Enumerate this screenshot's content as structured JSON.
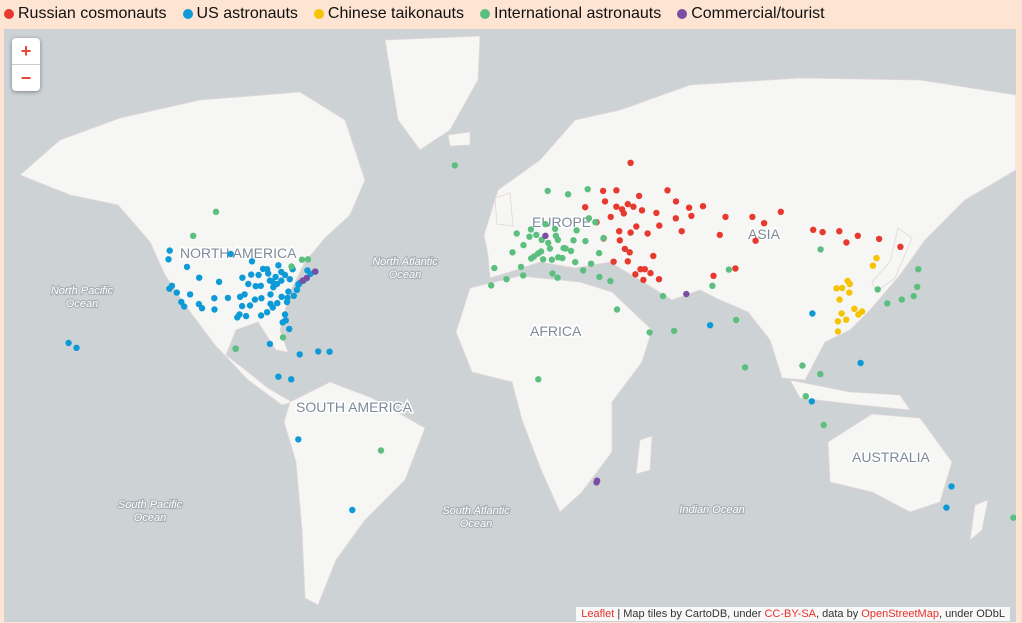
{
  "legend": [
    {
      "label": "Russian cosmonauts",
      "color": "#e8392f"
    },
    {
      "label": "US astronauts",
      "color": "#0d9ad6"
    },
    {
      "label": "Chinese taikonauts",
      "color": "#f5c300"
    },
    {
      "label": "International astronauts",
      "color": "#5cbf7f"
    },
    {
      "label": "Commercial/tourist",
      "color": "#7a4ea3"
    }
  ],
  "zoom": {
    "in": "+",
    "out": "−"
  },
  "labels": {
    "north_america": "NORTH AMERICA",
    "europe": "EUROPE",
    "asia": "ASIA",
    "africa": "AFRICA",
    "south_america": "SOUTH AMERICA",
    "australia": "AUSTRALIA",
    "north_atlantic": [
      "North Atlantic",
      "Ocean"
    ],
    "north_pacific": [
      "North Pacific",
      "Ocean"
    ],
    "south_pacific": [
      "South Pacific",
      "Ocean"
    ],
    "south_atlantic": [
      "South Atlantic",
      "Ocean"
    ],
    "indian": [
      "Indian Ocean"
    ]
  },
  "attribution": {
    "leaflet": "Leaflet",
    "sep": " | Map tiles by CartoDB, under ",
    "ccbysa": "CC-BY-SA",
    "mid": ", data by ",
    "osm": "OpenStreetMap",
    "end": ", under ODbL"
  },
  "points": {
    "russian": [
      [
        37.6,
        55.7
      ],
      [
        30.3,
        59.9
      ],
      [
        39.7,
        47.2
      ],
      [
        44,
        56.3
      ],
      [
        49.1,
        55.8
      ],
      [
        50.1,
        53.2
      ],
      [
        60.6,
        56.8
      ],
      [
        61.4,
        55.2
      ],
      [
        73.4,
        55
      ],
      [
        82.9,
        55
      ],
      [
        92.9,
        56
      ],
      [
        104.3,
        52.3
      ],
      [
        113.5,
        52
      ],
      [
        127.5,
        50.3
      ],
      [
        135,
        48.5
      ],
      [
        36,
        52
      ],
      [
        40,
        51.7
      ],
      [
        33,
        55
      ],
      [
        35,
        57
      ],
      [
        42,
        53
      ],
      [
        46,
        51.5
      ],
      [
        48,
        46.3
      ],
      [
        39,
        45
      ],
      [
        45,
        43
      ],
      [
        43.5,
        43
      ],
      [
        55.9,
        54.7
      ],
      [
        65.5,
        57.1
      ],
      [
        76.9,
        43.2
      ],
      [
        69.2,
        41.3
      ],
      [
        71.4,
        51.2
      ],
      [
        84,
        49.9
      ],
      [
        28,
        53.9
      ],
      [
        24,
        56.9
      ],
      [
        30.5,
        50.4
      ],
      [
        36.2,
        50
      ],
      [
        34,
        44.9
      ],
      [
        38,
        48
      ],
      [
        56,
        58
      ],
      [
        47,
        42
      ],
      [
        50,
        40.4
      ],
      [
        41.7,
        41.7
      ],
      [
        44.5,
        40.2
      ],
      [
        107.6,
        51.8
      ],
      [
        120,
        51
      ],
      [
        116,
        49.5
      ],
      [
        37,
        56.5
      ],
      [
        39,
        57.5
      ],
      [
        41,
        57
      ],
      [
        43,
        59
      ],
      [
        31,
        58
      ],
      [
        35,
        60
      ],
      [
        40,
        64.5
      ],
      [
        53,
        60
      ],
      [
        58,
        52
      ],
      [
        87,
        53.7
      ]
    ],
    "us": [
      [
        -118.2,
        34
      ],
      [
        -117.2,
        32.7
      ],
      [
        -122.4,
        37.8
      ],
      [
        -121.5,
        38.6
      ],
      [
        -119.8,
        36.7
      ],
      [
        -122.7,
        45.5
      ],
      [
        -122.3,
        47.6
      ],
      [
        -112,
        33.4
      ],
      [
        -110.9,
        32.2
      ],
      [
        -106.6,
        35.1
      ],
      [
        -104.9,
        39.7
      ],
      [
        -111.9,
        40.8
      ],
      [
        -115.1,
        36.2
      ],
      [
        -97.7,
        30.3
      ],
      [
        -95.4,
        29.8
      ],
      [
        -96.8,
        32.8
      ],
      [
        -98.5,
        29.4
      ],
      [
        -97.5,
        35.5
      ],
      [
        -95.9,
        36.2
      ],
      [
        -94.6,
        39.1
      ],
      [
        -90.2,
        38.6
      ],
      [
        -93.3,
        45
      ],
      [
        -87.6,
        41.9
      ],
      [
        -86.2,
        39.8
      ],
      [
        -84.5,
        39.1
      ],
      [
        -83,
        40
      ],
      [
        -83,
        42.3
      ],
      [
        -81.7,
        41.5
      ],
      [
        -80,
        40.4
      ],
      [
        -77,
        38.9
      ],
      [
        -76.6,
        39.3
      ],
      [
        -75.2,
        40
      ],
      [
        -74,
        40.7
      ],
      [
        -73.8,
        42.7
      ],
      [
        -71,
        42.4
      ],
      [
        -72.7,
        41.8
      ],
      [
        -78.6,
        35.8
      ],
      [
        -80.8,
        35.2
      ],
      [
        -81,
        34
      ],
      [
        -84.4,
        33.7
      ],
      [
        -86.8,
        33.5
      ],
      [
        -90.1,
        30
      ],
      [
        -90,
        35.1
      ],
      [
        -86.8,
        36.2
      ],
      [
        -85.8,
        38.2
      ],
      [
        -81.4,
        28.5
      ],
      [
        -80.2,
        25.8
      ],
      [
        -82.5,
        27.9
      ],
      [
        -81.7,
        30.3
      ],
      [
        -157.9,
        21.3
      ],
      [
        -155.1,
        19.7
      ],
      [
        -100.8,
        46.8
      ],
      [
        -96.7,
        40.8
      ],
      [
        -101.8,
        35.2
      ],
      [
        -88,
        43
      ],
      [
        -89.4,
        43.1
      ],
      [
        -92,
        38.5
      ],
      [
        -94,
        33
      ],
      [
        -92.3,
        34.7
      ],
      [
        -77.5,
        37.5
      ],
      [
        -79,
        43
      ],
      [
        -106.5,
        31.8
      ],
      [
        -116.2,
        43.6
      ],
      [
        -80.5,
        37
      ],
      [
        -82.9,
        35.5
      ],
      [
        -84,
        44
      ],
      [
        -85,
        41
      ],
      [
        -87,
        40
      ],
      [
        -91,
        41.5
      ],
      [
        -93.6,
        41.6
      ],
      [
        -86,
        32.4
      ],
      [
        -88,
        31
      ],
      [
        -99.1,
        19.4
      ],
      [
        -87,
        21
      ],
      [
        -79.5,
        9
      ],
      [
        -84,
        9.9
      ],
      [
        -77,
        -12
      ],
      [
        -58,
        -34.6
      ],
      [
        153,
        -27.5
      ],
      [
        151.2,
        -33.9
      ],
      [
        103.8,
        1.3
      ],
      [
        121,
        14.6
      ],
      [
        104,
        30.6
      ],
      [
        68,
        27
      ],
      [
        -70,
        18.5
      ],
      [
        -76.5,
        17.5
      ],
      [
        -66,
        18.4
      ]
    ],
    "chinese": [
      [
        116.4,
        39.9
      ],
      [
        117.2,
        39.1
      ],
      [
        121.5,
        31.2
      ],
      [
        120.2,
        30.3
      ],
      [
        113,
        28.2
      ],
      [
        114.3,
        30.6
      ],
      [
        113.6,
        34.7
      ],
      [
        112.5,
        37.9
      ],
      [
        114.5,
        38
      ],
      [
        118.8,
        32
      ],
      [
        117,
        36.7
      ],
      [
        126.6,
        45.8
      ],
      [
        125.3,
        43.9
      ],
      [
        115.9,
        28.7
      ],
      [
        113,
        25
      ]
    ],
    "international": [
      [
        -0.1,
        51.5
      ],
      [
        2.3,
        48.9
      ],
      [
        4.9,
        52.4
      ],
      [
        4.4,
        50.8
      ],
      [
        6.8,
        51.2
      ],
      [
        8.7,
        50.1
      ],
      [
        11.6,
        48.1
      ],
      [
        13.4,
        52.5
      ],
      [
        9.2,
        45.5
      ],
      [
        12.5,
        41.9
      ],
      [
        14.4,
        50.1
      ],
      [
        16.4,
        48.2
      ],
      [
        19,
        47.5
      ],
      [
        21,
        52.2
      ],
      [
        26.1,
        44.4
      ],
      [
        23.3,
        42.7
      ],
      [
        20.5,
        44.8
      ],
      [
        16,
        45.8
      ],
      [
        14.5,
        46
      ],
      [
        18,
        59.3
      ],
      [
        10.8,
        59.9
      ],
      [
        24.9,
        60.2
      ],
      [
        -3.7,
        40.4
      ],
      [
        -9.1,
        38.7
      ],
      [
        7.4,
        46.9
      ],
      [
        8.5,
        47.4
      ],
      [
        6,
        46.2
      ],
      [
        10,
        53.5
      ],
      [
        13.7,
        51
      ],
      [
        11,
        49.4
      ],
      [
        5,
        45.7
      ],
      [
        1.4,
        43.6
      ],
      [
        -1.6,
        47.2
      ],
      [
        19.9,
        50
      ],
      [
        28.9,
        47
      ],
      [
        24.1,
        49.8
      ],
      [
        30.5,
        50.5
      ],
      [
        35.2,
        31.8
      ],
      [
        51.4,
        35.7
      ],
      [
        68.8,
        38.6
      ],
      [
        74.6,
        42.9
      ],
      [
        77.2,
        28.6
      ],
      [
        80.3,
        13.1
      ],
      [
        100.5,
        13.7
      ],
      [
        106.8,
        10.8
      ],
      [
        106.9,
        47.9
      ],
      [
        139.7,
        35.7
      ],
      [
        135.5,
        34.7
      ],
      [
        130.4,
        33.6
      ],
      [
        141.3,
        43
      ],
      [
        140.9,
        38.3
      ],
      [
        127,
        37.6
      ],
      [
        -21.9,
        64.1
      ],
      [
        -106,
        56
      ],
      [
        -75.7,
        45.4
      ],
      [
        -79.4,
        43.7
      ],
      [
        -73.6,
        45.5
      ],
      [
        -114,
        51
      ],
      [
        -99,
        19.4
      ],
      [
        -82.4,
        23.1
      ],
      [
        -47.9,
        -15.8
      ],
      [
        7.5,
        9
      ],
      [
        46.7,
        24.7
      ],
      [
        55.3,
        25.2
      ],
      [
        101.7,
        3.1
      ],
      [
        108,
        -7
      ],
      [
        174.8,
        -36.8
      ],
      [
        32.9,
        39.9
      ],
      [
        29,
        41
      ],
      [
        2.2,
        41.4
      ],
      [
        -8,
        43.3
      ],
      [
        14.3,
        40.8
      ],
      [
        12.3,
        45.4
      ],
      [
        17.1,
        48.1
      ],
      [
        27.6,
        53.9
      ],
      [
        25.3,
        54.7
      ]
    ],
    "commercial": [
      [
        -71.1,
        42.4
      ],
      [
        -74,
        40.7
      ],
      [
        28,
        -26.2
      ],
      [
        28.2,
        -25.7
      ],
      [
        10,
        51
      ],
      [
        59.6,
        36.3
      ],
      [
        -75.5,
        40
      ]
    ]
  }
}
